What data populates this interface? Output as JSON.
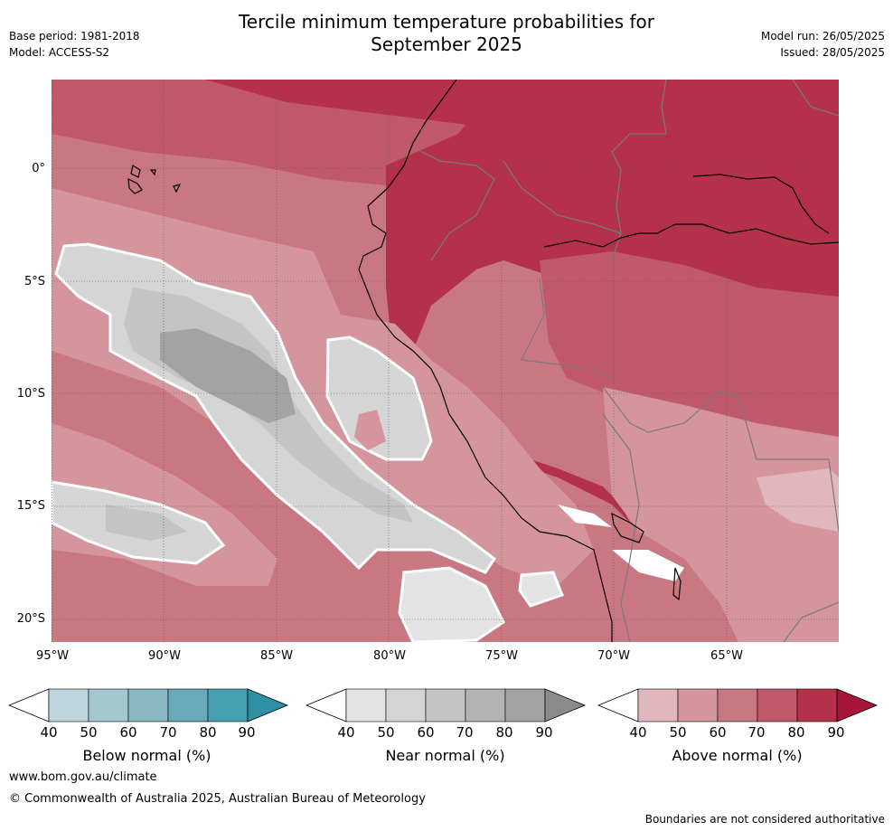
{
  "title_line1": "Tercile minimum temperature probabilities for",
  "title_line2": "September 2025",
  "base_period": "Base period: 1981-2018",
  "model": "Model: ACCESS-S2",
  "model_run": "Model run: 26/05/2025",
  "issued": "Issued: 28/05/2025",
  "lat_ticks": [
    "0°",
    "5°S",
    "10°S",
    "15°S",
    "20°S"
  ],
  "lon_ticks": [
    "95°W",
    "90°W",
    "85°W",
    "80°W",
    "75°W",
    "70°W",
    "65°W"
  ],
  "colorbars": [
    {
      "label": "Below normal (%)",
      "ticks": [
        "40",
        "50",
        "60",
        "70",
        "80",
        "90"
      ],
      "colors": [
        "#ffffff",
        "#bcd5dc",
        "#a4c7cf",
        "#88b8c4",
        "#6aa9b8",
        "#47a0b2",
        "#2e8fa5"
      ]
    },
    {
      "label": "Near normal (%)",
      "ticks": [
        "40",
        "50",
        "60",
        "70",
        "80",
        "90"
      ],
      "colors": [
        "#ffffff",
        "#e3e3e3",
        "#d5d5d5",
        "#c4c4c4",
        "#b3b3b3",
        "#a3a3a3",
        "#8a8a8a"
      ]
    },
    {
      "label": "Above normal (%)",
      "ticks": [
        "40",
        "50",
        "60",
        "70",
        "80",
        "90"
      ],
      "colors": [
        "#ffffff",
        "#e0b7bc",
        "#d4959c",
        "#c97882",
        "#c0596a",
        "#b53149",
        "#a8153b"
      ]
    }
  ],
  "website": "www.bom.gov.au/climate",
  "copyright": "© Commonwealth of Australia 2025, Australian Bureau of Meteorology",
  "disclaimer": "Boundaries are not considered authoritative"
}
